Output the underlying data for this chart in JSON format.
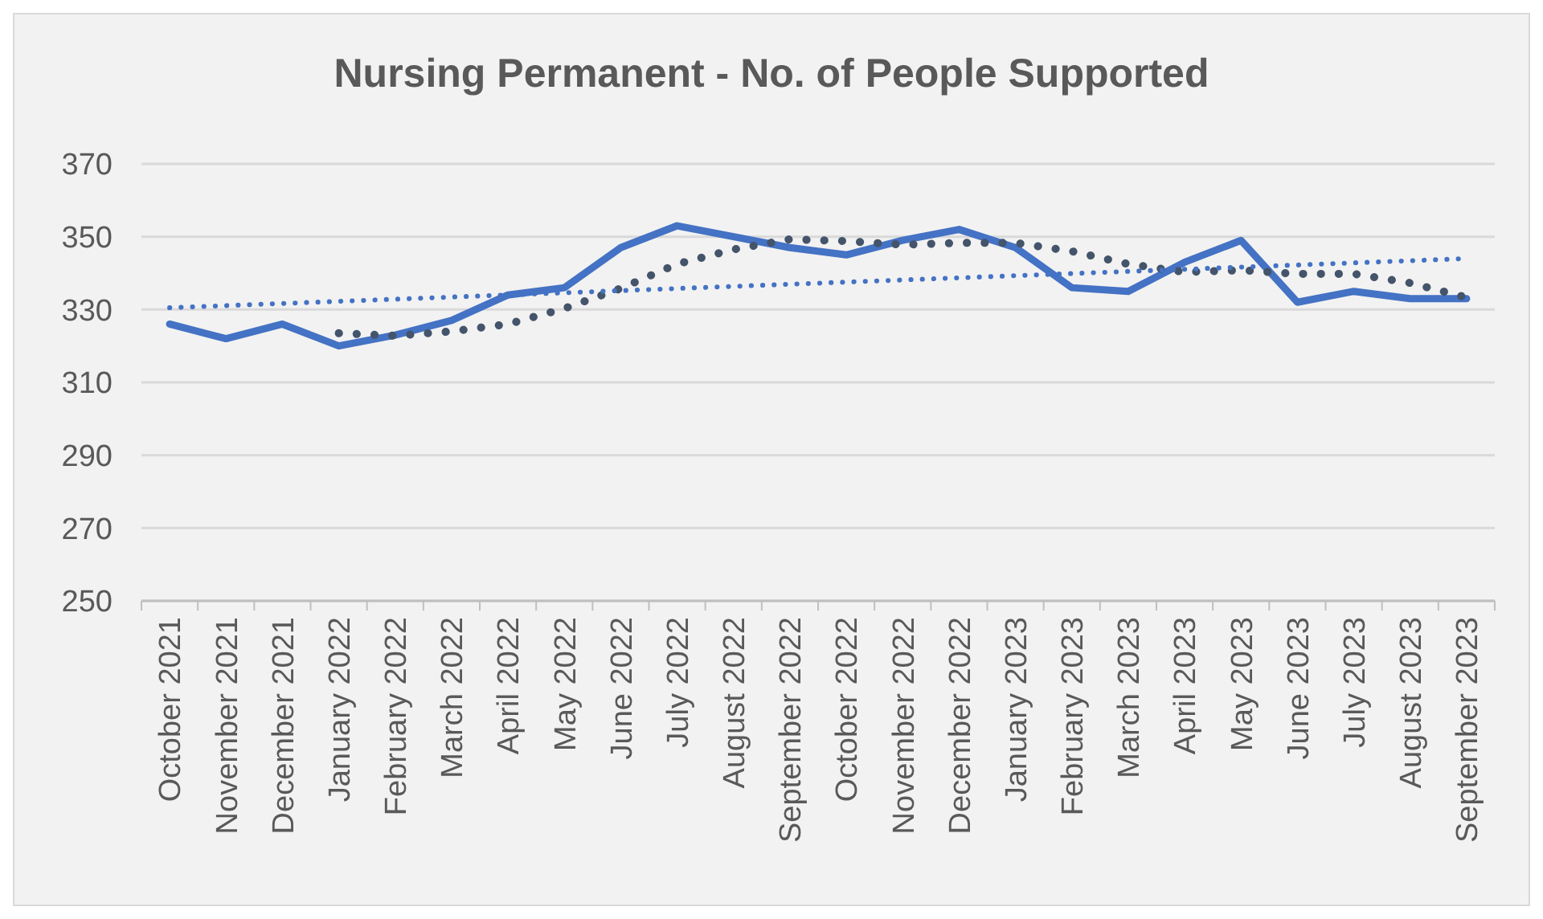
{
  "chart_data": {
    "type": "line",
    "title": "Nursing Permanent - No. of People Supported",
    "categories": [
      "October 2021",
      "November 2021",
      "December 2021",
      "January 2022",
      "February 2022",
      "March 2022",
      "April 2022",
      "May 2022",
      "June 2022",
      "July 2022",
      "August 2022",
      "September 2022",
      "October 2022",
      "November 2022",
      "December 2022",
      "January 2023",
      "February 2023",
      "March 2023",
      "April 2023",
      "May 2023",
      "June 2023",
      "July 2023",
      "August 2023",
      "September 2023"
    ],
    "series": [
      {
        "color": "#4472c4",
        "line_style": "solid",
        "values": [
          326,
          322,
          326,
          320,
          323,
          327,
          334,
          336,
          347,
          353,
          350,
          347,
          345,
          349,
          352,
          347,
          336,
          335,
          343,
          349,
          332,
          335,
          333,
          333
        ]
      },
      {
        "color": "#44546a",
        "line_style": "dotted",
        "values": [
          null,
          null,
          null,
          323.5,
          322.8,
          324,
          326,
          330.3,
          335.8,
          342.5,
          346.5,
          349.3,
          348.8,
          347.8,
          348.3,
          348.3,
          346,
          342.5,
          340.3,
          340.8,
          339.8,
          339.8,
          337.3,
          333.3
        ]
      },
      {
        "color": "#4472c4",
        "line_style": "dotted",
        "x": [
          "October 2021",
          "September 2023"
        ],
        "values": [
          330.5,
          344
        ]
      }
    ],
    "ylim": [
      250,
      370
    ],
    "yticks": [
      250,
      270,
      290,
      310,
      330,
      350,
      370
    ],
    "grid": "y"
  }
}
